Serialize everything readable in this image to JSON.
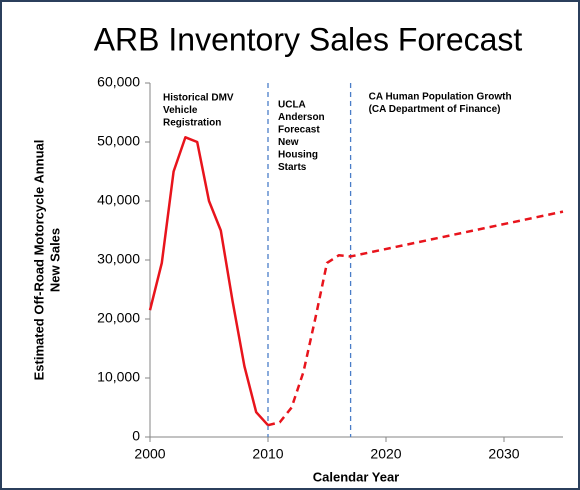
{
  "chart_data": {
    "type": "line",
    "title": "ARB Inventory Sales Forecast",
    "x_label": "Calendar Year",
    "y_label": [
      "Estimated Off-Road Motorcycle Annual",
      "New Sales"
    ],
    "xlim": [
      2000,
      2035
    ],
    "xticks": [
      2000,
      2010,
      2020,
      2030
    ],
    "ylim": [
      0,
      60000
    ],
    "yticks": [
      0,
      {
        "value": 10000,
        "label": "10,000"
      },
      {
        "value": 20000,
        "label": "20,000"
      },
      {
        "value": 30000,
        "label": "30,000"
      },
      {
        "value": 40000,
        "label": "40,000"
      },
      {
        "value": 50000,
        "label": "50,000"
      },
      {
        "value": 60000,
        "label": "60,000"
      }
    ],
    "series": [
      {
        "color": "#e8141c",
        "dashed": false,
        "x": [
          2000,
          2001,
          2002,
          2003,
          2004,
          2005,
          2006,
          2007,
          2008,
          2009,
          2010
        ],
        "values": [
          21500,
          29500,
          45000,
          50800,
          50000,
          40000,
          35000,
          23000,
          12000,
          4200,
          2000
        ]
      },
      {
        "color": "#e8141c",
        "dashed": true,
        "x": [
          2010,
          2011,
          2012,
          2013,
          2014,
          2015,
          2016,
          2017,
          2035
        ],
        "values": [
          2000,
          2500,
          5000,
          11000,
          20000,
          29500,
          30800,
          30600,
          38200
        ]
      }
    ],
    "vlines": [
      2010,
      2017
    ],
    "vline_color": "#4a7ec8",
    "annotations": [
      [
        "Historical DMV",
        "Vehicle",
        "Registration"
      ],
      [
        "UCLA",
        "Anderson",
        "Forecast",
        "New",
        "Housing",
        "Starts"
      ],
      [
        "CA Human Population Growth",
        "(CA Department of Finance)"
      ]
    ]
  }
}
